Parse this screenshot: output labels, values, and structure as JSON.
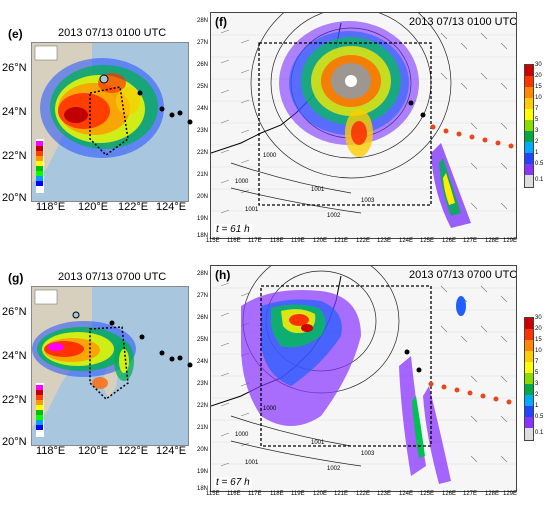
{
  "panels": {
    "e": {
      "label": "(e)",
      "time": "2013 07/13 0100 UTC",
      "lat_labels": [
        "26°N",
        "24°N",
        "22°N",
        "20°N"
      ],
      "lon_labels": [
        "118°E",
        "120°E",
        "122°E",
        "124°E"
      ]
    },
    "f": {
      "label": "(f)",
      "time": "2013 07/13 0100 UTC",
      "sim_time": "t = 61 h",
      "lat_labels": [
        "28N",
        "27N",
        "26N",
        "25N",
        "24N",
        "23N",
        "22N",
        "21N",
        "20N",
        "19N",
        "18N"
      ],
      "lon_labels": [
        "115E",
        "116E",
        "117E",
        "118E",
        "119E",
        "120E",
        "121E",
        "122E",
        "123E",
        "124E",
        "125E",
        "126E",
        "127E",
        "128E",
        "129E"
      ],
      "pressure_labels": [
        "1000",
        "1000",
        "1001",
        "1001",
        "1002",
        "1003"
      ],
      "colorbar": [
        "30",
        "20",
        "15",
        "10",
        "7",
        "5",
        "3",
        "2",
        "1",
        "0.5",
        "0.1"
      ]
    },
    "g": {
      "label": "(g)",
      "time": "2013 07/13 0700 UTC",
      "lat_labels": [
        "26°N",
        "24°N",
        "22°N",
        "20°N"
      ],
      "lon_labels": [
        "118°E",
        "120°E",
        "122°E",
        "124°E"
      ]
    },
    "h": {
      "label": "(h)",
      "time": "2013 07/13 0700 UTC",
      "sim_time": "t = 67 h",
      "lat_labels": [
        "28N",
        "27N",
        "26N",
        "25N",
        "24N",
        "23N",
        "22N",
        "21N",
        "20N",
        "19N",
        "18N"
      ],
      "lon_labels": [
        "115E",
        "116E",
        "117E",
        "118E",
        "119E",
        "120E",
        "121E",
        "122E",
        "123E",
        "124E",
        "125E",
        "126E",
        "127E",
        "128E",
        "129E"
      ],
      "pressure_labels": [
        "1000",
        "1000",
        "1001",
        "1001",
        "1002",
        "1003"
      ],
      "colorbar": [
        "30",
        "20",
        "15",
        "10",
        "7",
        "5",
        "3",
        "2",
        "1",
        "0.5",
        "0.1"
      ]
    }
  },
  "colors": {
    "ocean": "#a9c6df",
    "land": "#d7d0bf",
    "track": "#e8461c"
  }
}
